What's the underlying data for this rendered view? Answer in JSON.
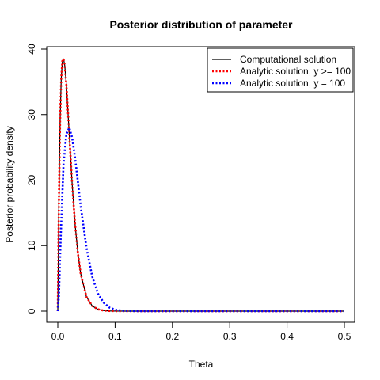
{
  "chart_data": {
    "type": "line",
    "title": "Posterior distribution of parameter",
    "xlabel": "Theta",
    "ylabel": "Posterior probability density",
    "xlim": [
      0,
      0.5
    ],
    "ylim": [
      0,
      40
    ],
    "x_ticks": [
      "0.0",
      "0.1",
      "0.2",
      "0.3",
      "0.4",
      "0.5"
    ],
    "y_ticks": [
      "0",
      "10",
      "20",
      "30",
      "40"
    ],
    "grid": false,
    "legend_position": "top-right",
    "series": [
      {
        "name": "Computational solution",
        "color": "#000000",
        "style": "solid",
        "peak_x": 0.01,
        "peak_y": 38.5,
        "x": [
          0,
          0.002,
          0.004,
          0.006,
          0.008,
          0.01,
          0.012,
          0.015,
          0.02,
          0.025,
          0.03,
          0.035,
          0.04,
          0.05,
          0.06,
          0.07,
          0.08,
          0.09,
          0.1,
          0.12,
          0.15,
          0.2,
          0.3,
          0.4,
          0.5
        ],
        "y": [
          0,
          17,
          29,
          35.5,
          38.2,
          38.5,
          37.6,
          34.5,
          27,
          19.5,
          13.4,
          8.9,
          5.7,
          2.2,
          0.8,
          0.28,
          0.09,
          0.03,
          0.01,
          0,
          0,
          0,
          0,
          0,
          0
        ]
      },
      {
        "name": "Analytic solution, y >= 100",
        "color": "#ff0000",
        "style": "dotted",
        "peak_x": 0.01,
        "peak_y": 38.5,
        "x": [
          0,
          0.002,
          0.004,
          0.006,
          0.008,
          0.01,
          0.012,
          0.015,
          0.02,
          0.025,
          0.03,
          0.035,
          0.04,
          0.05,
          0.06,
          0.07,
          0.08,
          0.09,
          0.1,
          0.12,
          0.15,
          0.2,
          0.3,
          0.4,
          0.5
        ],
        "y": [
          0,
          17,
          29,
          35.5,
          38.2,
          38.5,
          37.6,
          34.5,
          27,
          19.5,
          13.4,
          8.9,
          5.7,
          2.2,
          0.8,
          0.28,
          0.09,
          0.03,
          0.01,
          0,
          0,
          0,
          0,
          0,
          0
        ]
      },
      {
        "name": "Analytic solution, y = 100",
        "color": "#0000ff",
        "style": "dotted",
        "peak_x": 0.02,
        "peak_y": 28,
        "x": [
          0,
          0.002,
          0.005,
          0.01,
          0.015,
          0.02,
          0.025,
          0.03,
          0.035,
          0.04,
          0.05,
          0.06,
          0.07,
          0.08,
          0.09,
          0.1,
          0.11,
          0.12,
          0.15,
          0.2,
          0.3,
          0.4,
          0.5
        ],
        "y": [
          0,
          2.5,
          11,
          22.5,
          27,
          28,
          26.5,
          23.5,
          19.8,
          16,
          9.7,
          5.3,
          2.7,
          1.3,
          0.55,
          0.23,
          0.09,
          0.04,
          0,
          0,
          0,
          0,
          0
        ]
      }
    ]
  }
}
